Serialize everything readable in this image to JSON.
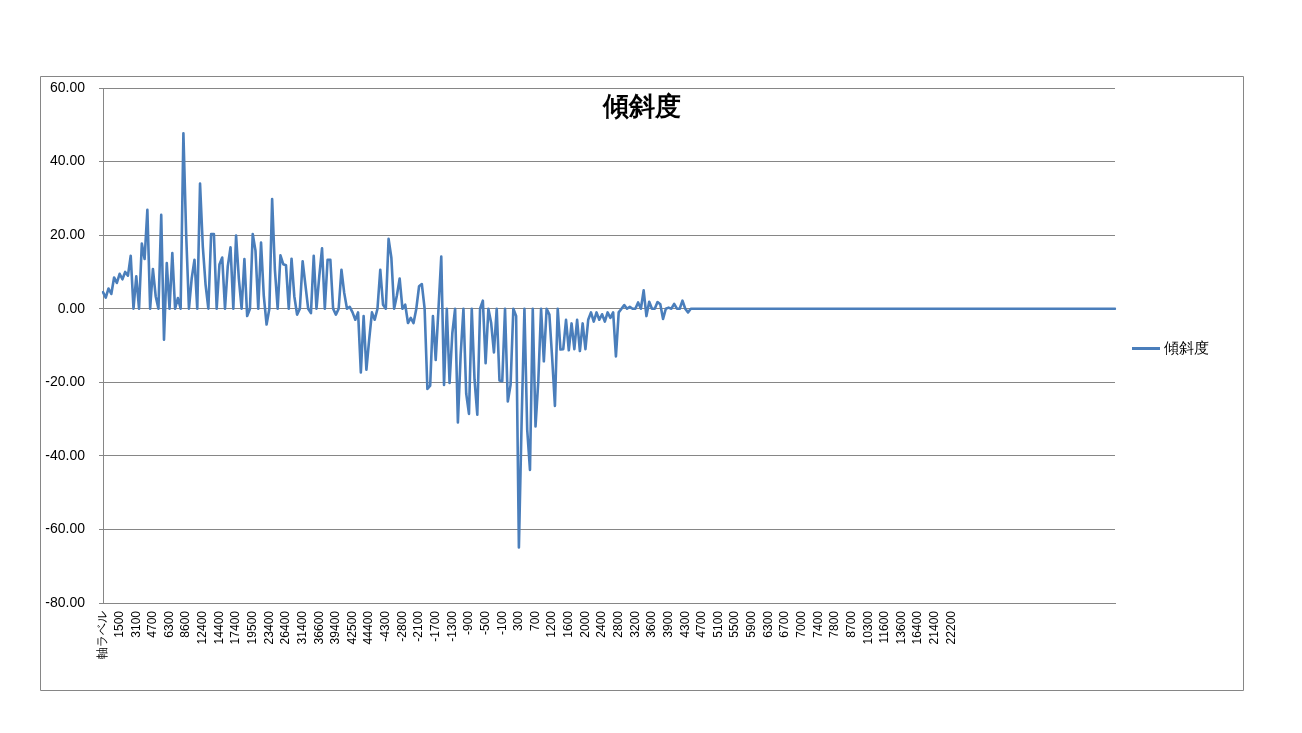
{
  "chart_data": {
    "type": "line",
    "title": "傾斜度",
    "categories": [
      "軸ラベル",
      null,
      null,
      null,
      null,
      null,
      "1500",
      null,
      null,
      null,
      null,
      null,
      "3100",
      null,
      null,
      null,
      null,
      null,
      "4700",
      null,
      null,
      null,
      null,
      null,
      "6300",
      null,
      null,
      null,
      null,
      null,
      "8600",
      null,
      null,
      null,
      null,
      null,
      "12400",
      null,
      null,
      null,
      null,
      null,
      "14400",
      null,
      null,
      null,
      null,
      null,
      "17400",
      null,
      null,
      null,
      null,
      null,
      "19500",
      null,
      null,
      null,
      null,
      null,
      "23400",
      null,
      null,
      null,
      null,
      null,
      "26400",
      null,
      null,
      null,
      null,
      null,
      "31400",
      null,
      null,
      null,
      null,
      null,
      "36600",
      null,
      null,
      null,
      null,
      null,
      "39400",
      null,
      null,
      null,
      null,
      null,
      "42500",
      null,
      null,
      null,
      null,
      null,
      "44400",
      null,
      null,
      null,
      null,
      null,
      "-4300",
      null,
      null,
      null,
      null,
      null,
      "-2800",
      null,
      null,
      null,
      null,
      null,
      "-2100",
      null,
      null,
      null,
      null,
      null,
      "-1700",
      null,
      null,
      null,
      null,
      null,
      "-1300",
      null,
      null,
      null,
      null,
      null,
      "-900",
      null,
      null,
      null,
      null,
      null,
      "-500",
      null,
      null,
      null,
      null,
      null,
      "-100",
      null,
      null,
      null,
      null,
      null,
      "300",
      null,
      null,
      null,
      null,
      null,
      "700",
      null,
      null,
      null,
      null,
      null,
      "1200",
      null,
      null,
      null,
      null,
      null,
      "1600",
      null,
      null,
      null,
      null,
      null,
      "2000",
      null,
      null,
      null,
      null,
      null,
      "2400",
      null,
      null,
      null,
      null,
      null,
      "2800",
      null,
      null,
      null,
      null,
      null,
      "3200",
      null,
      null,
      null,
      null,
      null,
      "3600",
      null,
      null,
      null,
      null,
      null,
      "3900",
      null,
      null,
      null,
      null,
      null,
      "4300",
      null,
      null,
      null,
      null,
      null,
      "4700",
      null,
      null,
      null,
      null,
      null,
      "5100",
      null,
      null,
      null,
      null,
      null,
      "5500",
      null,
      null,
      null,
      null,
      null,
      "5900",
      null,
      null,
      null,
      null,
      null,
      "6300",
      null,
      null,
      null,
      null,
      null,
      "6700",
      null,
      null,
      null,
      null,
      null,
      "7000",
      null,
      null,
      null,
      null,
      null,
      "7400",
      null,
      null,
      null,
      null,
      null,
      "7800",
      null,
      null,
      null,
      null,
      null,
      "8700",
      null,
      null,
      null,
      null,
      null,
      "10300",
      null,
      null,
      null,
      null,
      null,
      "11600",
      null,
      null,
      null,
      null,
      null,
      "13600",
      null,
      null,
      null,
      null,
      null,
      "16400",
      null,
      null,
      null,
      null,
      null,
      "21400",
      null,
      null,
      null,
      null,
      null,
      "22200",
      null,
      null,
      null,
      null,
      null,
      null,
      null,
      null,
      null,
      null,
      null,
      null,
      null,
      null,
      null,
      null,
      null,
      null,
      null,
      null,
      null,
      null,
      null,
      null,
      null,
      null,
      null,
      null,
      null,
      null,
      null,
      null,
      null,
      null,
      null,
      null,
      null,
      null,
      null,
      null,
      null,
      null,
      null,
      null,
      null,
      null,
      null,
      null,
      null,
      null,
      null,
      null,
      null,
      null,
      null,
      null,
      null,
      null,
      null
    ],
    "series": [
      {
        "name": "傾斜度",
        "color": "#4a7ebb",
        "values": [
          4.5,
          3,
          5.5,
          4,
          8.5,
          7,
          9.5,
          8,
          10,
          9,
          14.4,
          0,
          8.8,
          0,
          17.7,
          13.5,
          26.9,
          0,
          10.8,
          3.4,
          0,
          25.5,
          -8.4,
          12.4,
          0,
          15.1,
          0,
          2.9,
          0,
          47.7,
          20.1,
          0,
          8.3,
          13.3,
          0,
          34,
          16.9,
          6.5,
          0,
          20.3,
          20.3,
          0,
          12,
          13.9,
          0,
          11.5,
          16.7,
          0,
          19.9,
          8.1,
          0,
          13.5,
          -2,
          0,
          20.3,
          15.8,
          0,
          18,
          3.4,
          -4.3,
          0,
          29.8,
          10.6,
          0,
          14.5,
          12.1,
          11.8,
          0,
          13.6,
          3.4,
          -1.6,
          0,
          12.9,
          6.5,
          0,
          -1.2,
          14.4,
          0,
          8.8,
          16.4,
          0,
          13.3,
          13.3,
          0,
          -1.6,
          0,
          10.6,
          4.3,
          0,
          0.5,
          -1,
          -3,
          -1,
          -17.3,
          -2,
          -16.6,
          -8.4,
          -1,
          -3,
          0,
          10.6,
          1.1,
          0,
          19,
          13.9,
          0,
          3.6,
          8.2,
          0,
          1.1,
          -3.9,
          -2.5,
          -3.9,
          0,
          6.1,
          6.7,
          0,
          -21.8,
          -20.9,
          -2,
          -13.9,
          0,
          14.2,
          -20.7,
          0,
          -20.2,
          -6.6,
          0,
          -30.9,
          -12.5,
          0,
          -23.1,
          -28.6,
          0,
          -19.3,
          -28.8,
          0,
          2.2,
          -14.8,
          0,
          -3.9,
          -11.9,
          0,
          -19.5,
          -19.7,
          0,
          -25.2,
          -20.7,
          0,
          -2,
          -64.9,
          -30.2,
          0,
          -32.9,
          -43.8,
          0,
          -32,
          -19.7,
          0,
          -14.3,
          0,
          -1.6,
          -13.4,
          -26.4,
          0,
          -11.1,
          -11,
          -3,
          -11.3,
          -4,
          -11,
          -3,
          -11.5,
          -4,
          -11,
          -3,
          -1,
          -3.5,
          -1,
          -3,
          -1.5,
          -3.5,
          -1,
          -2.5,
          -1,
          -13,
          -1,
          0,
          1,
          0,
          0.5,
          0,
          0,
          1.7,
          0,
          5,
          -2,
          1.9,
          0,
          0,
          1.8,
          1.2,
          -2.8,
          0,
          0.3,
          0,
          1.3,
          0,
          0,
          2.2,
          0,
          -1,
          0,
          0,
          0,
          0,
          0,
          0,
          0,
          0,
          0,
          0,
          0,
          0,
          0,
          0,
          0,
          0,
          0,
          0,
          0,
          0,
          0,
          0,
          0,
          0,
          0,
          0,
          0,
          0,
          0,
          0,
          0,
          0,
          0,
          0,
          0,
          0,
          0,
          0,
          0,
          0,
          0,
          0,
          0,
          0,
          0,
          0,
          0,
          0,
          0,
          0,
          0,
          0,
          0,
          0,
          0,
          0,
          0,
          0,
          0,
          0,
          0,
          0,
          0,
          0,
          0,
          0,
          0,
          0,
          0,
          0,
          0,
          0,
          0,
          0,
          0,
          0,
          0,
          0,
          0,
          0,
          0,
          0,
          0,
          0,
          0,
          0,
          0,
          0,
          0,
          0,
          0,
          0,
          0,
          0,
          0,
          0,
          0,
          0,
          0,
          0,
          0,
          0,
          0,
          0,
          0,
          0,
          0,
          0,
          0,
          0,
          0,
          0,
          0,
          0,
          0,
          0,
          0,
          0,
          0,
          0,
          0,
          0,
          0,
          0,
          0,
          0,
          0,
          0,
          0,
          0,
          0,
          0,
          0,
          0,
          0,
          0,
          0,
          0,
          0,
          0,
          0,
          0,
          0,
          0,
          0,
          0,
          0,
          0,
          0,
          0,
          0,
          0,
          0,
          0
        ]
      }
    ],
    "ylim": [
      -80,
      60
    ],
    "yticks": [
      {
        "value": -80,
        "label": "-80.00"
      },
      {
        "value": -60,
        "label": "-60.00"
      },
      {
        "value": -40,
        "label": "-40.00"
      },
      {
        "value": -20,
        "label": "-20.00"
      },
      {
        "value": 0,
        "label": "0.00"
      },
      {
        "value": 20,
        "label": "20.00"
      },
      {
        "value": 40,
        "label": "40.00"
      },
      {
        "value": 60,
        "label": "60.00"
      }
    ],
    "grid": "y",
    "legend": "right"
  }
}
